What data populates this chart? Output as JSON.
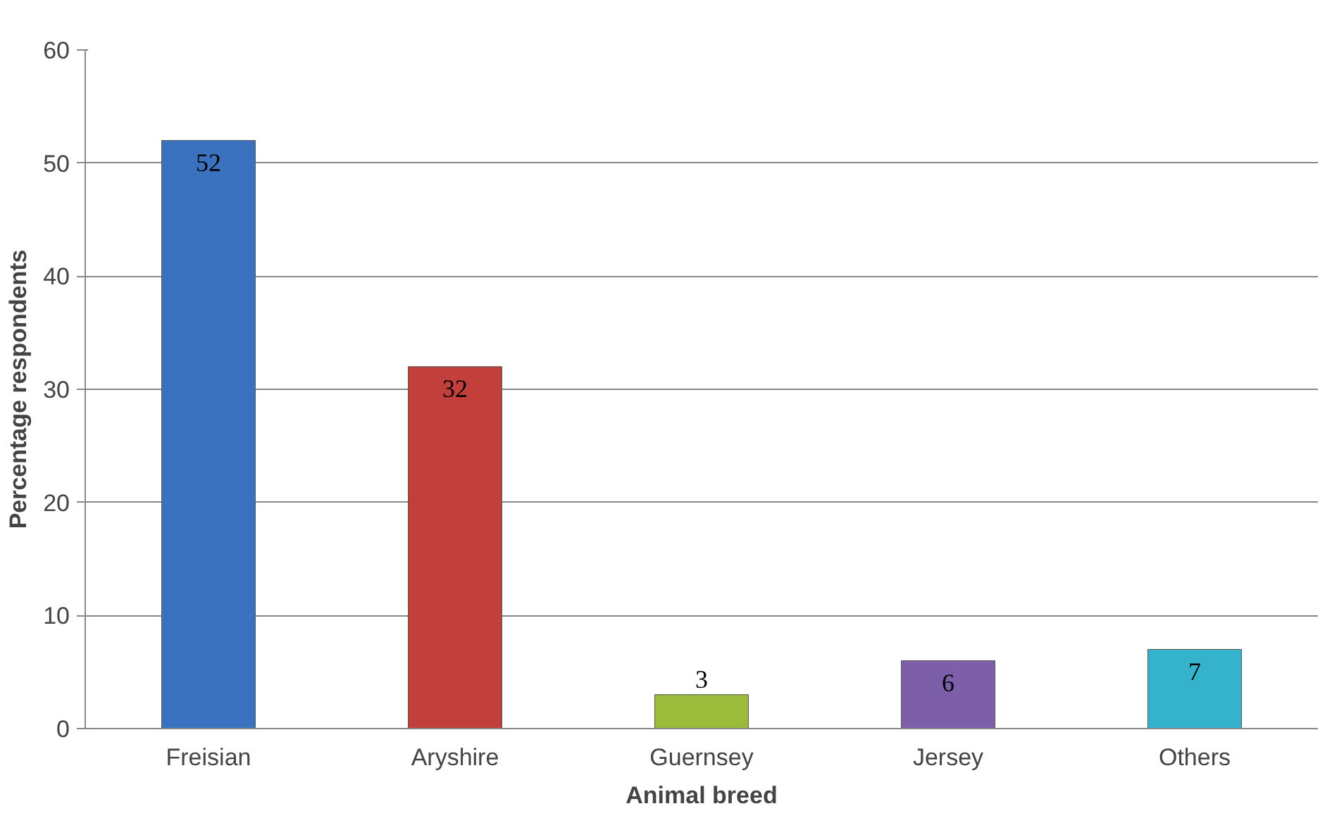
{
  "chart_data": {
    "type": "bar",
    "xlabel": "Animal breed",
    "ylabel": "Percentage respondents",
    "categories": [
      "Freisian",
      "Aryshire",
      "Guernsey",
      "Jersey",
      "Others"
    ],
    "values": [
      52,
      32,
      3,
      6,
      7
    ],
    "colors": [
      "#3b72c0",
      "#c23f3b",
      "#9bbb3b",
      "#7d5fa9",
      "#35b3cd"
    ],
    "ylim": [
      0,
      60
    ],
    "yticks": [
      0,
      10,
      20,
      30,
      40,
      50,
      60
    ],
    "grid": "y",
    "data_labels": true
  }
}
